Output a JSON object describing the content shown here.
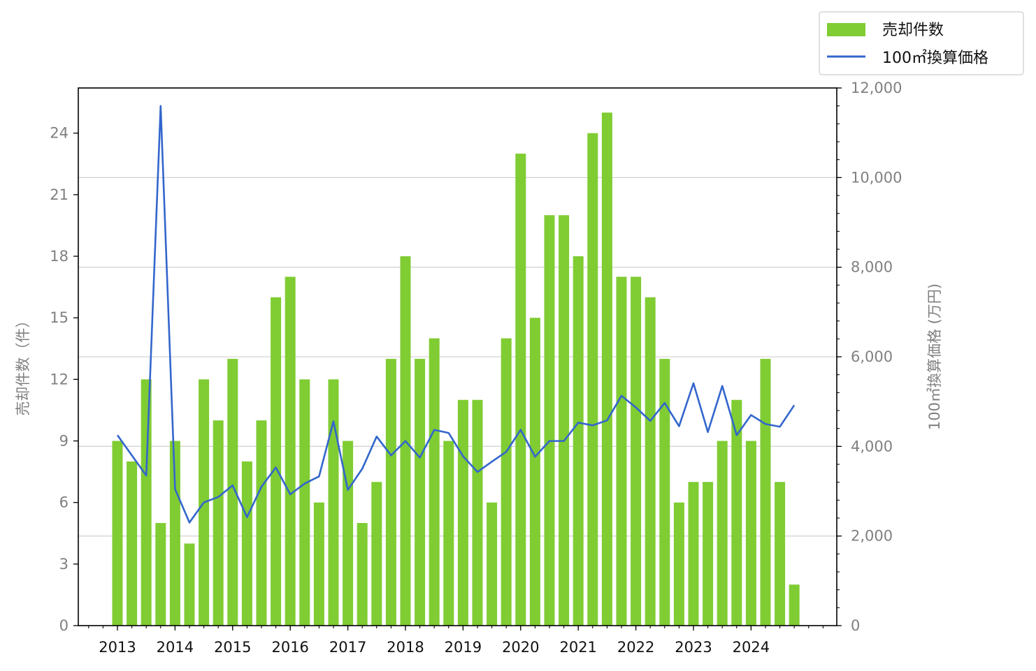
{
  "chart_data": {
    "type": "bar+line",
    "x_tick_labels": [
      "2013",
      "2014",
      "2015",
      "2016",
      "2017",
      "2018",
      "2019",
      "2020",
      "2021",
      "2022",
      "2023",
      "2024"
    ],
    "quarters": [
      "2013Q1",
      "2013Q2",
      "2013Q3",
      "2013Q4",
      "2014Q1",
      "2014Q2",
      "2014Q3",
      "2014Q4",
      "2015Q1",
      "2015Q2",
      "2015Q3",
      "2015Q4",
      "2016Q1",
      "2016Q2",
      "2016Q3",
      "2016Q4",
      "2017Q1",
      "2017Q2",
      "2017Q3",
      "2017Q4",
      "2018Q1",
      "2018Q2",
      "2018Q3",
      "2018Q4",
      "2019Q1",
      "2019Q2",
      "2019Q3",
      "2019Q4",
      "2020Q1",
      "2020Q2",
      "2020Q3",
      "2020Q4",
      "2021Q1",
      "2021Q2",
      "2021Q3",
      "2021Q4",
      "2022Q1",
      "2022Q2",
      "2022Q3",
      "2022Q4",
      "2023Q1",
      "2023Q2",
      "2023Q3",
      "2023Q4",
      "2024Q1",
      "2024Q2",
      "2024Q3",
      "2024Q4"
    ],
    "series": [
      {
        "name": "売却件数",
        "kind": "bar",
        "axis": "left",
        "color": "#80cc33",
        "values": [
          9,
          8,
          12,
          5,
          9,
          4,
          12,
          10,
          13,
          8,
          10,
          16,
          17,
          12,
          6,
          12,
          9,
          5,
          7,
          13,
          18,
          13,
          14,
          9,
          11,
          11,
          6,
          14,
          23,
          15,
          20,
          20,
          18,
          24,
          25,
          17,
          17,
          16,
          13,
          6,
          7,
          7,
          9,
          11,
          9,
          13,
          7,
          2
        ]
      },
      {
        "name": "100㎡換算価格",
        "kind": "line",
        "axis": "right",
        "color": "#3366cc",
        "values": [
          4250,
          3800,
          3350,
          11600,
          3050,
          2300,
          2750,
          2870,
          3130,
          2420,
          3100,
          3530,
          2930,
          3170,
          3330,
          4560,
          3030,
          3500,
          4220,
          3800,
          4120,
          3750,
          4370,
          4300,
          3780,
          3430,
          3660,
          3880,
          4370,
          3770,
          4120,
          4120,
          4530,
          4470,
          4580,
          5130,
          4870,
          4570,
          4970,
          4450,
          5410,
          4320,
          5350,
          4250,
          4700,
          4500,
          4440,
          4920
        ]
      }
    ],
    "y_left": {
      "label": "売却件数（件）",
      "ticks": [
        "0",
        "3",
        "6",
        "9",
        "12",
        "15",
        "18",
        "21",
        "24"
      ],
      "range": [
        0,
        26.2
      ]
    },
    "y_right": {
      "label": "100㎡換算価格 (万円)",
      "ticks": [
        "0",
        "2,000",
        "4,000",
        "6,000",
        "8,000",
        "10,000",
        "12,000"
      ],
      "range": [
        0,
        12000
      ]
    },
    "grid": "horizontal",
    "legend_position": "top-right"
  }
}
